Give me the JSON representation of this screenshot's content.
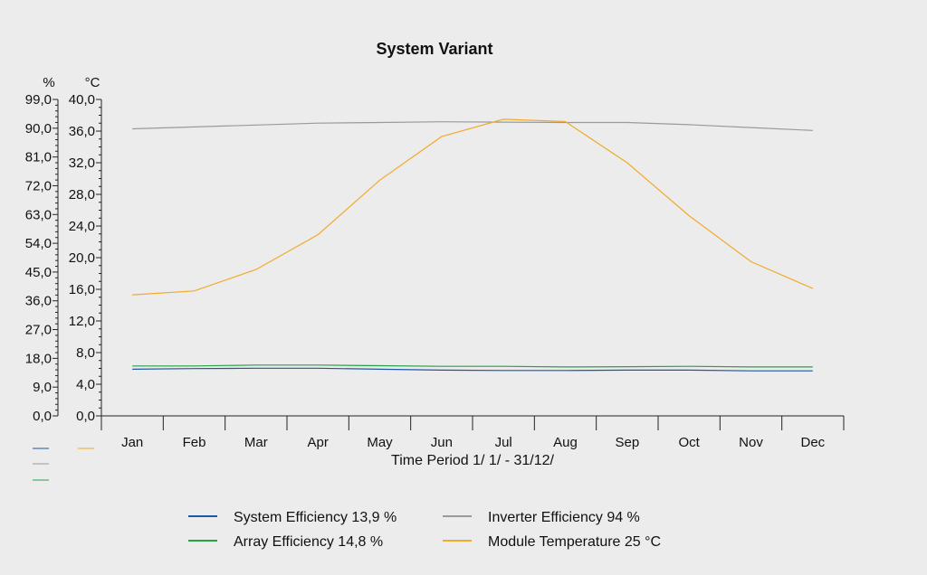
{
  "chart_data": {
    "type": "line",
    "title": "System Variant",
    "xlabel": "Time Period 1/ 1/ - 31/12/",
    "left_axis": {
      "unit": "%",
      "ylim": [
        0,
        99
      ],
      "ticks": [
        "0,0",
        "9,0",
        "18,0",
        "27,0",
        "36,0",
        "45,0",
        "54,0",
        "63,0",
        "72,0",
        "81,0",
        "90,0",
        "99,0"
      ]
    },
    "right_axis": {
      "unit": "°C",
      "ylim": [
        0,
        40
      ],
      "ticks": [
        "0,0",
        "4,0",
        "8,0",
        "12,0",
        "16,0",
        "20,0",
        "24,0",
        "28,0",
        "32,0",
        "36,0",
        "40,0"
      ]
    },
    "categories": [
      "Jan",
      "Feb",
      "Mar",
      "Apr",
      "May",
      "Jun",
      "Jul",
      "Aug",
      "Sep",
      "Oct",
      "Nov",
      "Dec"
    ],
    "series": [
      {
        "name": "System Efficiency",
        "summary_value": "13,9",
        "unit": "%",
        "axis": "left",
        "color": "#1f56a8",
        "values": [
          14.6,
          14.8,
          14.9,
          14.9,
          14.6,
          14.3,
          14.2,
          14.2,
          14.3,
          14.3,
          14.1,
          14.1
        ]
      },
      {
        "name": "Inverter Efficiency",
        "summary_value": "94",
        "unit": "%",
        "axis": "left",
        "color": "#9a9a9a",
        "values": [
          89.8,
          90.4,
          91.0,
          91.6,
          91.8,
          92.0,
          91.9,
          91.8,
          91.8,
          91.1,
          90.2,
          89.3
        ]
      },
      {
        "name": "Array Efficiency",
        "summary_value": "14,8",
        "unit": "%",
        "axis": "left",
        "color": "#27a04a",
        "values": [
          15.6,
          15.6,
          15.9,
          15.9,
          15.7,
          15.5,
          15.5,
          15.3,
          15.4,
          15.5,
          15.3,
          15.3
        ]
      },
      {
        "name": "Module Temperature",
        "summary_value": "25",
        "unit": "°C",
        "axis": "right",
        "color": "#f0aa2c",
        "values": [
          15.3,
          15.8,
          18.5,
          22.9,
          29.8,
          35.3,
          37.5,
          37.2,
          32.0,
          25.3,
          19.5,
          16.1
        ]
      }
    ],
    "grid": false,
    "legend_position": "bottom"
  }
}
